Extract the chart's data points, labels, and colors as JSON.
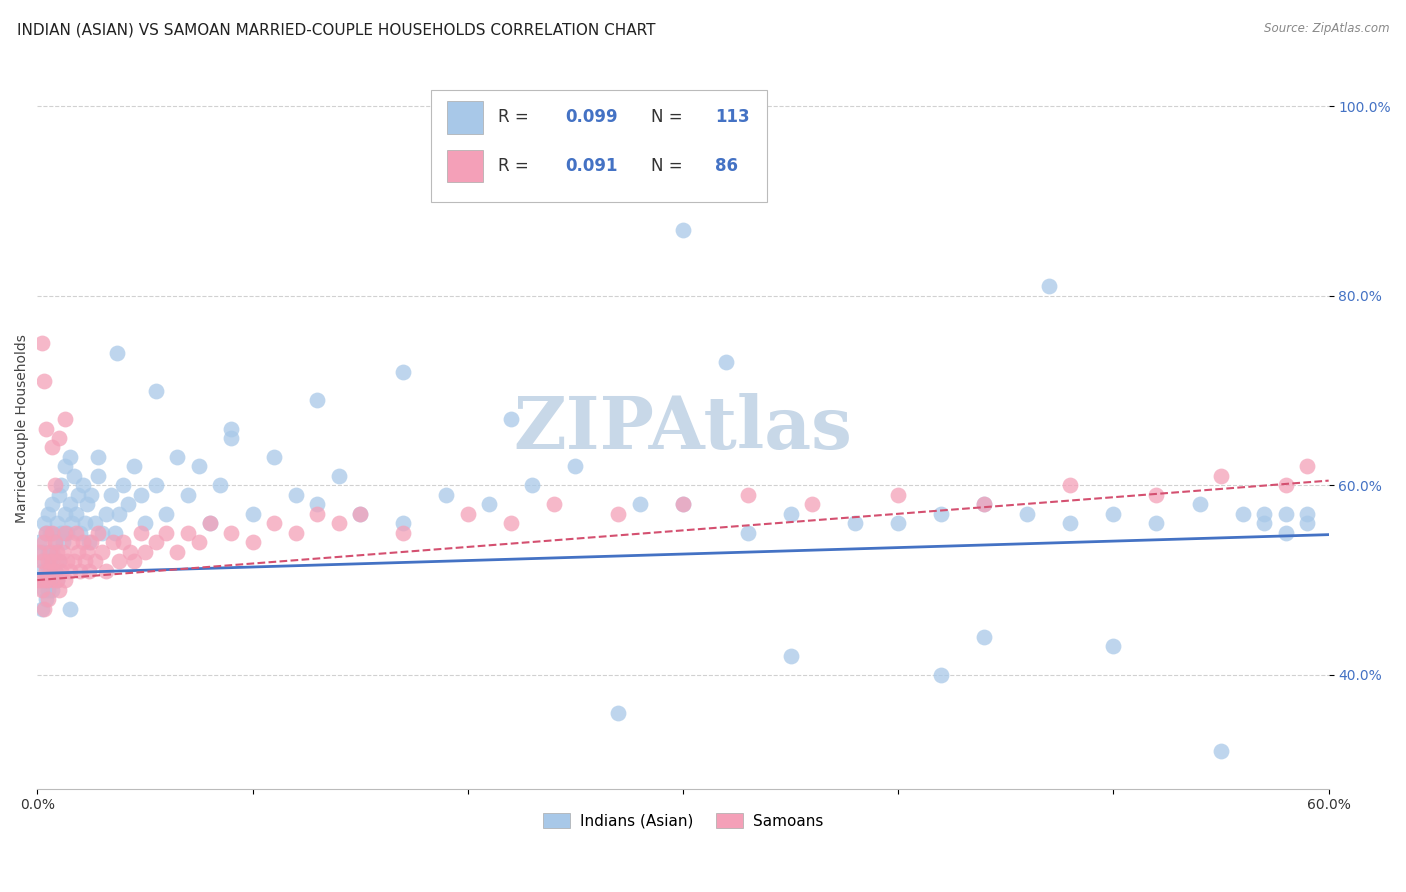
{
  "title": "INDIAN (ASIAN) VS SAMOAN MARRIED-COUPLE HOUSEHOLDS CORRELATION CHART",
  "source": "Source: ZipAtlas.com",
  "ylabel": "Married-couple Households",
  "xlim": [
    0.0,
    0.6
  ],
  "ylim": [
    0.28,
    1.04
  ],
  "xticks": [
    0.0,
    0.1,
    0.2,
    0.3,
    0.4,
    0.5,
    0.6
  ],
  "xticklabels": [
    "0.0%",
    "",
    "",
    "",
    "",
    "",
    "60.0%"
  ],
  "yticks": [
    0.4,
    0.6,
    0.8,
    1.0
  ],
  "yticklabels": [
    "40.0%",
    "60.0%",
    "80.0%",
    "100.0%"
  ],
  "indian_color": "#a8c8e8",
  "samoan_color": "#f4a0b8",
  "indian_line_color": "#4472c4",
  "samoan_line_color": "#d45070",
  "legend_indian": "Indians (Asian)",
  "legend_samoan": "Samoans",
  "grid_color": "#cccccc",
  "background_color": "#ffffff",
  "title_fontsize": 11,
  "axis_fontsize": 10,
  "tick_fontsize": 10,
  "watermark_color": "#c8d8e8",
  "indian_x": [
    0.001,
    0.001,
    0.002,
    0.002,
    0.002,
    0.003,
    0.003,
    0.003,
    0.004,
    0.004,
    0.004,
    0.005,
    0.005,
    0.005,
    0.005,
    0.006,
    0.006,
    0.006,
    0.007,
    0.007,
    0.007,
    0.008,
    0.008,
    0.009,
    0.009,
    0.01,
    0.01,
    0.011,
    0.011,
    0.012,
    0.013,
    0.013,
    0.014,
    0.015,
    0.015,
    0.016,
    0.017,
    0.018,
    0.019,
    0.02,
    0.021,
    0.022,
    0.023,
    0.024,
    0.025,
    0.027,
    0.028,
    0.03,
    0.032,
    0.034,
    0.036,
    0.038,
    0.04,
    0.042,
    0.045,
    0.048,
    0.05,
    0.055,
    0.06,
    0.065,
    0.07,
    0.075,
    0.08,
    0.085,
    0.09,
    0.1,
    0.11,
    0.12,
    0.13,
    0.14,
    0.15,
    0.17,
    0.19,
    0.21,
    0.23,
    0.25,
    0.28,
    0.3,
    0.33,
    0.35,
    0.38,
    0.4,
    0.42,
    0.44,
    0.46,
    0.48,
    0.5,
    0.52,
    0.54,
    0.56,
    0.57,
    0.57,
    0.58,
    0.58,
    0.59,
    0.59,
    0.3,
    0.47,
    0.32,
    0.5,
    0.27,
    0.42,
    0.55,
    0.44,
    0.35,
    0.22,
    0.17,
    0.13,
    0.09,
    0.055,
    0.037,
    0.028,
    0.015
  ],
  "indian_y": [
    0.5,
    0.54,
    0.51,
    0.47,
    0.53,
    0.49,
    0.52,
    0.56,
    0.5,
    0.48,
    0.55,
    0.51,
    0.53,
    0.49,
    0.57,
    0.5,
    0.52,
    0.55,
    0.49,
    0.53,
    0.58,
    0.51,
    0.54,
    0.5,
    0.56,
    0.52,
    0.59,
    0.55,
    0.6,
    0.54,
    0.57,
    0.62,
    0.55,
    0.58,
    0.63,
    0.56,
    0.61,
    0.57,
    0.59,
    0.55,
    0.6,
    0.56,
    0.58,
    0.54,
    0.59,
    0.56,
    0.61,
    0.55,
    0.57,
    0.59,
    0.55,
    0.57,
    0.6,
    0.58,
    0.62,
    0.59,
    0.56,
    0.6,
    0.57,
    0.63,
    0.59,
    0.62,
    0.56,
    0.6,
    0.65,
    0.57,
    0.63,
    0.59,
    0.58,
    0.61,
    0.57,
    0.56,
    0.59,
    0.58,
    0.6,
    0.62,
    0.58,
    0.58,
    0.55,
    0.57,
    0.56,
    0.56,
    0.57,
    0.58,
    0.57,
    0.56,
    0.57,
    0.56,
    0.58,
    0.57,
    0.57,
    0.56,
    0.57,
    0.55,
    0.57,
    0.56,
    0.87,
    0.81,
    0.73,
    0.43,
    0.36,
    0.4,
    0.32,
    0.44,
    0.42,
    0.67,
    0.72,
    0.69,
    0.66,
    0.7,
    0.74,
    0.63,
    0.47
  ],
  "samoan_x": [
    0.001,
    0.001,
    0.002,
    0.002,
    0.003,
    0.003,
    0.003,
    0.004,
    0.004,
    0.005,
    0.005,
    0.005,
    0.006,
    0.006,
    0.007,
    0.007,
    0.007,
    0.008,
    0.008,
    0.009,
    0.009,
    0.01,
    0.01,
    0.011,
    0.012,
    0.013,
    0.013,
    0.014,
    0.015,
    0.016,
    0.017,
    0.018,
    0.019,
    0.02,
    0.021,
    0.022,
    0.023,
    0.024,
    0.025,
    0.027,
    0.028,
    0.03,
    0.032,
    0.035,
    0.038,
    0.04,
    0.043,
    0.045,
    0.048,
    0.05,
    0.055,
    0.06,
    0.065,
    0.07,
    0.075,
    0.08,
    0.09,
    0.1,
    0.11,
    0.12,
    0.13,
    0.14,
    0.15,
    0.17,
    0.2,
    0.22,
    0.24,
    0.27,
    0.3,
    0.33,
    0.36,
    0.4,
    0.44,
    0.48,
    0.52,
    0.55,
    0.58,
    0.59,
    0.002,
    0.003,
    0.004,
    0.01,
    0.013,
    0.007,
    0.008
  ],
  "samoan_y": [
    0.5,
    0.53,
    0.49,
    0.52,
    0.5,
    0.54,
    0.47,
    0.51,
    0.55,
    0.5,
    0.52,
    0.48,
    0.51,
    0.53,
    0.5,
    0.52,
    0.55,
    0.51,
    0.54,
    0.5,
    0.53,
    0.49,
    0.52,
    0.51,
    0.53,
    0.5,
    0.55,
    0.52,
    0.51,
    0.54,
    0.52,
    0.55,
    0.53,
    0.51,
    0.54,
    0.52,
    0.53,
    0.51,
    0.54,
    0.52,
    0.55,
    0.53,
    0.51,
    0.54,
    0.52,
    0.54,
    0.53,
    0.52,
    0.55,
    0.53,
    0.54,
    0.55,
    0.53,
    0.55,
    0.54,
    0.56,
    0.55,
    0.54,
    0.56,
    0.55,
    0.57,
    0.56,
    0.57,
    0.55,
    0.57,
    0.56,
    0.58,
    0.57,
    0.58,
    0.59,
    0.58,
    0.59,
    0.58,
    0.6,
    0.59,
    0.61,
    0.6,
    0.62,
    0.75,
    0.71,
    0.66,
    0.65,
    0.67,
    0.64,
    0.6
  ]
}
